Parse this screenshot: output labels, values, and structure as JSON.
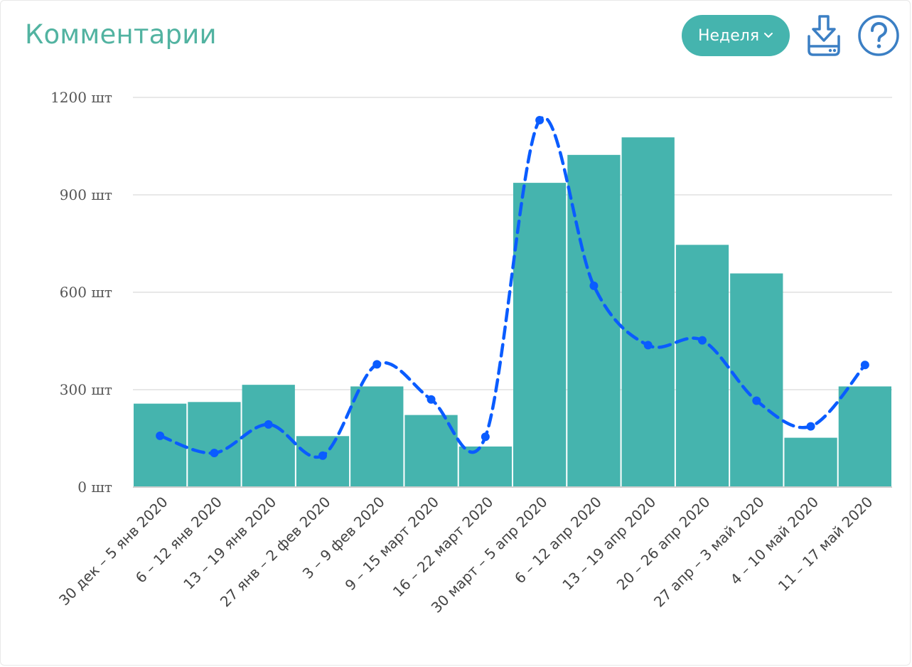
{
  "header": {
    "title": "Комментарии",
    "period_label": "Неделя"
  },
  "colors": {
    "title": "#52b3a1",
    "bar": "#45b4ae",
    "line": "#0a5cff",
    "icon": "#3b7fc4",
    "grid": "#e0e0e0"
  },
  "icons": {
    "download": "download-icon",
    "help": "help-icon",
    "chevron": "chevron-down-icon"
  },
  "chart_data": {
    "type": "bar",
    "ylim": [
      0,
      1200
    ],
    "yticks": [
      0,
      300,
      600,
      900,
      1200
    ],
    "ytick_labels": [
      "0 шт",
      "300 шт",
      "600 шт",
      "900 шт",
      "1200 шт"
    ],
    "grid": true,
    "categories": [
      "30 дек – 5 янв 2020",
      "6 – 12 янв 2020",
      "13 – 19 янв 2020",
      "27 янв – 2 фев 2020",
      "3 – 9 фев 2020",
      "9 – 15 март 2020",
      "16 – 22 март 2020",
      "30 март – 5 апр 2020",
      "6 – 12 апр 2020",
      "13 – 19 апр 2020",
      "20 – 26 апр 2020",
      "27 апр – 3 май 2020",
      "4 – 10 май 2020",
      "11 – 17 май 2020"
    ],
    "series": [
      {
        "type": "bar",
        "values": [
          257,
          262,
          315,
          157,
          310,
          222,
          125,
          937,
          1023,
          1077,
          746,
          658,
          152,
          310
        ]
      },
      {
        "type": "line",
        "style": "dashed-smooth",
        "values": [
          158,
          105,
          193,
          97,
          378,
          270,
          155,
          1130,
          620,
          437,
          452,
          266,
          187,
          376
        ]
      }
    ]
  }
}
